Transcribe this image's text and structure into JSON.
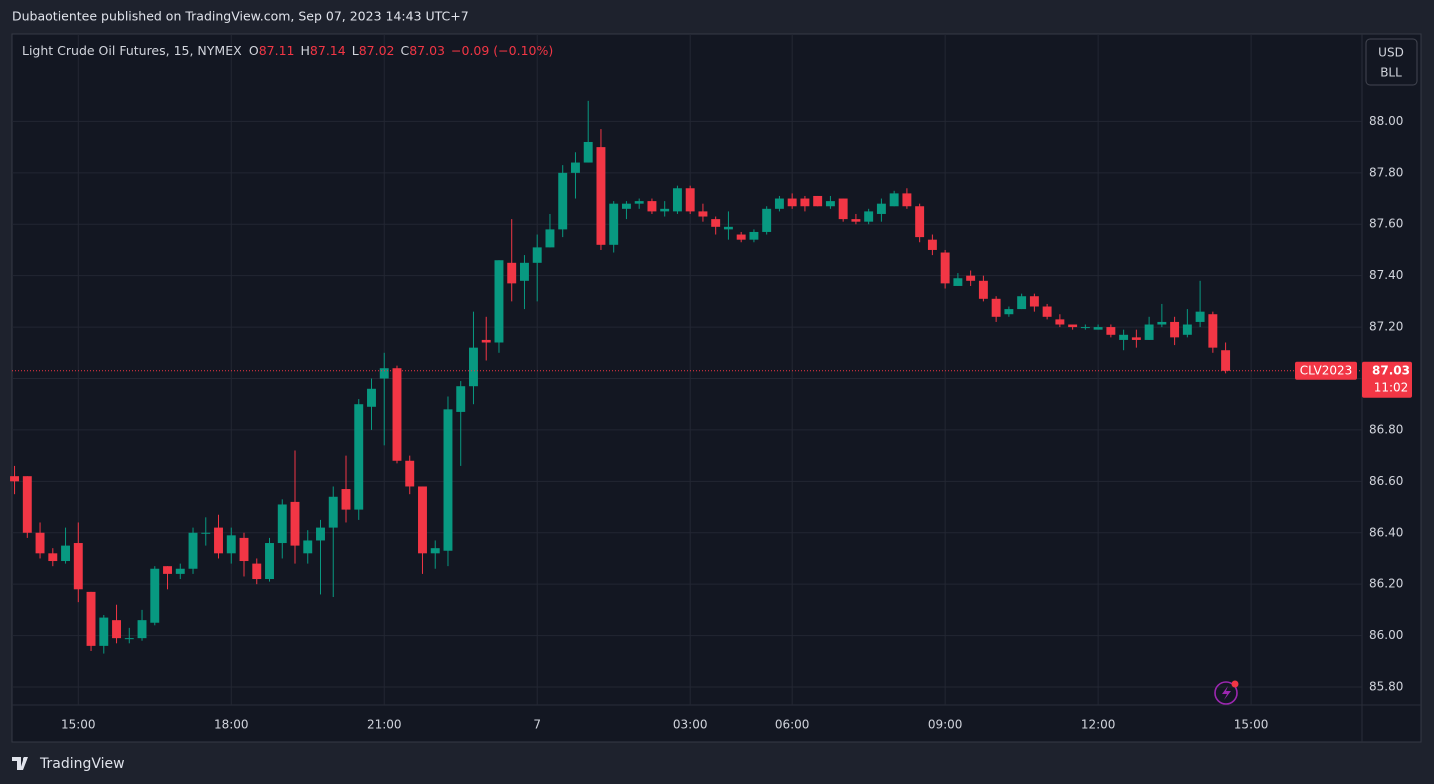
{
  "header": {
    "publisher": "Dubaotientee published on TradingView.com, Sep 07, 2023 14:43 UTC+7",
    "brand": "TradingView"
  },
  "chart_data": {
    "type": "candlestick",
    "legend": {
      "symbol": "Light Crude Oil Futures, 15, NYMEX",
      "open_label": "O",
      "open": 87.11,
      "high_label": "H",
      "high": 87.14,
      "low_label": "L",
      "low": 87.02,
      "close_label": "C",
      "close": 87.03,
      "change": "−0.09 (−0.10%)"
    },
    "currency": "USD",
    "unit": "BLL",
    "last_label": "CLV2023",
    "last_price": 87.03,
    "countdown": "11:02",
    "up_color": "#089981",
    "down_color": "#f23645",
    "grid": true,
    "xlim": [
      -0.2,
      105.7
    ],
    "xticks": [
      {
        "value": 5,
        "label": "15:00"
      },
      {
        "value": 17,
        "label": "18:00"
      },
      {
        "value": 29,
        "label": "21:00"
      },
      {
        "value": 41,
        "label": "7"
      },
      {
        "value": 53,
        "label": "03:00"
      },
      {
        "value": 61,
        "label": "06:00"
      },
      {
        "value": 73,
        "label": "09:00"
      },
      {
        "value": 85,
        "label": "12:00"
      },
      {
        "value": 97,
        "label": "15:00"
      }
    ],
    "ylim": [
      85.73,
      88.34
    ],
    "yticks": [
      {
        "value": 85.8,
        "label": "85.80"
      },
      {
        "value": 86.0,
        "label": "86.00"
      },
      {
        "value": 86.2,
        "label": "86.20"
      },
      {
        "value": 86.4,
        "label": "86.40"
      },
      {
        "value": 86.6,
        "label": "86.60"
      },
      {
        "value": 86.8,
        "label": "86.80"
      },
      {
        "value": 87.0,
        "label": "87.00"
      },
      {
        "value": 87.2,
        "label": "87.20"
      },
      {
        "value": 87.4,
        "label": "87.40"
      },
      {
        "value": 87.6,
        "label": "87.60"
      },
      {
        "value": 87.8,
        "label": "87.80"
      },
      {
        "value": 88.0,
        "label": "88.00"
      }
    ],
    "open": [
      86.62,
      86.62,
      86.4,
      86.32,
      86.29,
      86.36,
      86.17,
      85.96,
      86.06,
      85.99,
      85.99,
      86.05,
      86.27,
      86.24,
      86.26,
      86.4,
      86.42,
      86.32,
      86.38,
      86.28,
      86.22,
      86.36,
      86.52,
      86.32,
      86.37,
      86.42,
      86.57,
      86.49,
      86.89,
      87.0,
      87.04,
      86.68,
      86.58,
      86.32,
      86.33,
      86.87,
      86.97,
      87.15,
      87.14,
      87.45,
      87.38,
      87.45,
      87.51,
      87.58,
      87.8,
      87.84,
      87.9,
      87.52,
      87.66,
      87.68,
      87.69,
      87.65,
      87.65,
      87.74,
      87.65,
      87.62,
      87.58,
      87.56,
      87.54,
      87.57,
      87.66,
      87.7,
      87.7,
      87.71,
      87.67,
      87.7,
      87.62,
      87.61,
      87.64,
      87.67,
      87.72,
      87.67,
      87.54,
      87.49,
      87.36,
      87.4,
      87.38,
      87.31,
      87.25,
      87.27,
      87.32,
      87.28,
      87.23,
      87.21,
      87.2,
      87.19,
      87.2,
      87.15,
      87.16,
      87.15,
      87.21,
      87.22,
      87.17,
      87.22,
      87.25,
      87.11
    ],
    "high": [
      86.66,
      86.62,
      86.44,
      86.34,
      86.42,
      86.44,
      86.17,
      86.08,
      86.12,
      86.03,
      86.1,
      86.27,
      86.27,
      86.28,
      86.42,
      86.46,
      86.47,
      86.42,
      86.4,
      86.3,
      86.38,
      86.53,
      86.72,
      86.41,
      86.45,
      86.58,
      86.7,
      86.92,
      87.0,
      87.1,
      87.05,
      86.7,
      86.58,
      86.37,
      86.93,
      86.99,
      87.26,
      87.24,
      87.46,
      87.62,
      87.48,
      87.56,
      87.64,
      87.83,
      87.88,
      88.08,
      87.97,
      87.69,
      87.69,
      87.7,
      87.7,
      87.69,
      87.75,
      87.75,
      87.68,
      87.63,
      87.65,
      87.57,
      87.58,
      87.67,
      87.71,
      87.72,
      87.71,
      87.71,
      87.71,
      87.7,
      87.64,
      87.66,
      87.7,
      87.73,
      87.74,
      87.68,
      87.56,
      87.5,
      87.41,
      87.42,
      87.4,
      87.32,
      87.28,
      87.33,
      87.33,
      87.29,
      87.25,
      87.21,
      87.21,
      87.21,
      87.21,
      87.19,
      87.19,
      87.24,
      87.29,
      87.24,
      87.27,
      87.38,
      87.26,
      87.14
    ],
    "low": [
      86.55,
      86.38,
      86.3,
      86.27,
      86.28,
      86.13,
      85.94,
      85.93,
      85.97,
      85.97,
      85.98,
      86.04,
      86.18,
      86.22,
      86.24,
      86.35,
      86.3,
      86.28,
      86.23,
      86.2,
      86.21,
      86.3,
      86.28,
      86.28,
      86.16,
      86.15,
      86.44,
      86.45,
      86.8,
      86.74,
      86.67,
      86.55,
      86.24,
      86.26,
      86.27,
      86.66,
      86.9,
      87.07,
      87.1,
      87.3,
      87.27,
      87.3,
      87.51,
      87.55,
      87.7,
      87.84,
      87.5,
      87.49,
      87.62,
      87.66,
      87.64,
      87.63,
      87.64,
      87.64,
      87.61,
      87.56,
      87.54,
      87.53,
      87.53,
      87.56,
      87.65,
      87.66,
      87.65,
      87.67,
      87.66,
      87.61,
      87.6,
      87.6,
      87.61,
      87.67,
      87.66,
      87.53,
      87.48,
      87.35,
      87.36,
      87.36,
      87.3,
      87.22,
      87.24,
      87.27,
      87.26,
      87.23,
      87.2,
      87.19,
      87.19,
      87.19,
      87.16,
      87.11,
      87.12,
      87.15,
      87.2,
      87.13,
      87.16,
      87.2,
      87.1,
      87.02
    ],
    "close": [
      86.6,
      86.4,
      86.32,
      86.29,
      86.35,
      86.18,
      85.96,
      86.07,
      85.99,
      85.99,
      86.06,
      86.26,
      86.24,
      86.26,
      86.4,
      86.4,
      86.32,
      86.39,
      86.29,
      86.22,
      86.36,
      86.51,
      86.35,
      86.37,
      86.42,
      86.54,
      86.49,
      86.9,
      86.96,
      87.04,
      86.68,
      86.58,
      86.32,
      86.34,
      86.88,
      86.97,
      87.12,
      87.14,
      87.46,
      87.37,
      87.45,
      87.51,
      87.58,
      87.8,
      87.84,
      87.92,
      87.52,
      87.68,
      87.68,
      87.69,
      87.65,
      87.66,
      87.74,
      87.65,
      87.63,
      87.59,
      87.59,
      87.54,
      87.57,
      87.66,
      87.7,
      87.67,
      87.67,
      87.67,
      87.69,
      87.62,
      87.61,
      87.65,
      87.68,
      87.72,
      87.67,
      87.55,
      87.5,
      87.37,
      87.39,
      87.38,
      87.31,
      87.24,
      87.27,
      87.32,
      87.28,
      87.24,
      87.21,
      87.2,
      87.2,
      87.2,
      87.17,
      87.17,
      87.15,
      87.21,
      87.22,
      87.16,
      87.21,
      87.26,
      87.12,
      87.03
    ]
  }
}
